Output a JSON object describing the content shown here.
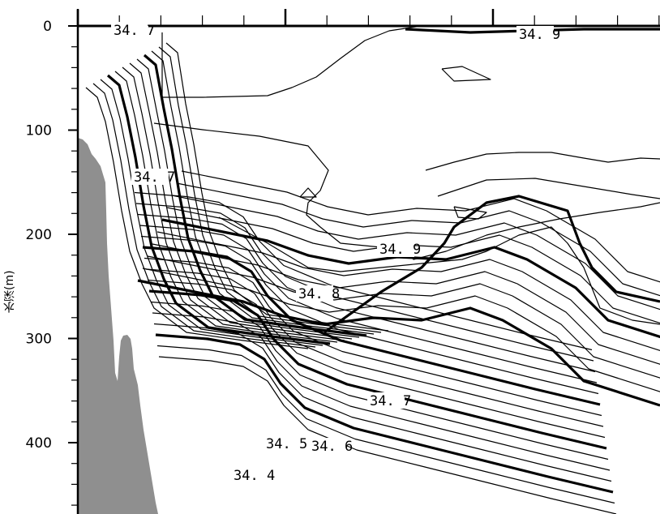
{
  "chart_data": {
    "type": "contour",
    "xlabel": "",
    "ylabel": "水深(m)",
    "y_axis": {
      "inverted": true,
      "ylim": [
        0,
        465
      ],
      "ticks": [
        0,
        100,
        200,
        300,
        400
      ]
    },
    "x_axis": {
      "tick_labels_shown": false
    },
    "grid": false,
    "contour_labels": [
      "34.7",
      "34.9",
      "34.7",
      "34.9",
      "34.8",
      "34.7",
      "34.5",
      "34.6",
      "34.4"
    ],
    "label_depths_m": [
      7,
      32,
      150,
      218,
      262,
      360,
      406,
      409,
      433
    ],
    "bold_levels": [
      "34.4",
      "34.5",
      "34.6",
      "34.7",
      "34.8",
      "34.9"
    ],
    "seafloor_color": "#8f8f8f",
    "line_color": "#000000"
  }
}
